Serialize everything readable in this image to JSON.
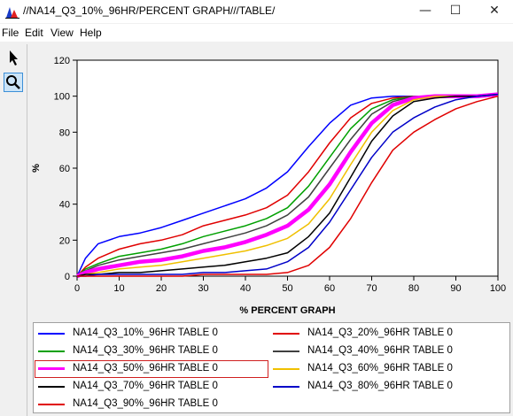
{
  "window": {
    "title": "//NA14_Q3_10%_96HR/PERCENT GRAPH///TABLE/",
    "minimize_glyph": "—",
    "maximize_glyph": "☐",
    "close_glyph": "✕"
  },
  "menu": [
    "File",
    "Edit",
    "View",
    "Help"
  ],
  "toolbar": [
    {
      "name": "pointer-tool",
      "icon": "arrow-pointer-icon",
      "active": false
    },
    {
      "name": "zoom-tool",
      "icon": "magnifier-icon",
      "active": true
    }
  ],
  "chart_data": {
    "type": "line",
    "title": "",
    "xlabel": "% PERCENT GRAPH",
    "ylabel": "%",
    "xlim": [
      0,
      100
    ],
    "ylim": [
      0,
      120
    ],
    "xticks": [
      0,
      10,
      20,
      30,
      40,
      50,
      60,
      70,
      80,
      90,
      100
    ],
    "yticks": [
      0,
      20,
      40,
      60,
      80,
      100,
      120
    ],
    "grid": false,
    "legend": "bottom",
    "x": [
      0,
      2,
      5,
      10,
      15,
      20,
      25,
      30,
      35,
      40,
      45,
      50,
      55,
      60,
      65,
      70,
      75,
      80,
      85,
      90,
      95,
      100
    ],
    "series": [
      {
        "name": "NA14_Q3_10%_96HR TABLE  0",
        "color": "#0000ff",
        "width": 1.5,
        "values": [
          0,
          10,
          18,
          22,
          24,
          27,
          31,
          35,
          39,
          43,
          49,
          58,
          72,
          85,
          95,
          99,
          100,
          100,
          100,
          100,
          100,
          100
        ]
      },
      {
        "name": "NA14_Q3_20%_96HR TABLE  0",
        "color": "#e00000",
        "width": 1.5,
        "values": [
          0,
          5,
          10,
          15,
          18,
          20,
          23,
          28,
          31,
          34,
          38,
          45,
          58,
          74,
          88,
          96,
          99,
          100,
          100,
          100,
          100,
          100
        ]
      },
      {
        "name": "NA14_Q3_30%_96HR TABLE  0",
        "color": "#00a000",
        "width": 1.5,
        "values": [
          0,
          4,
          7,
          11,
          13,
          15,
          18,
          22,
          25,
          28,
          32,
          38,
          50,
          66,
          82,
          93,
          98,
          100,
          100,
          100,
          100,
          100
        ]
      },
      {
        "name": "NA14_Q3_40%_96HR TABLE  0",
        "color": "#404040",
        "width": 1.5,
        "values": [
          0,
          3,
          6,
          9,
          11,
          13,
          15,
          18,
          21,
          24,
          28,
          34,
          44,
          60,
          76,
          90,
          97,
          100,
          100,
          100,
          100,
          100
        ]
      },
      {
        "name": "NA14_Q3_50%_96HR TABLE  0",
        "color": "#ff00ff",
        "width": 4.5,
        "values": [
          0,
          2,
          4,
          6,
          8,
          9,
          11,
          14,
          16,
          19,
          23,
          28,
          37,
          51,
          69,
          85,
          95,
          99,
          100,
          100,
          100,
          101
        ]
      },
      {
        "name": "NA14_Q3_60%_96HR TABLE  0",
        "color": "#f0c000",
        "width": 1.5,
        "values": [
          0,
          1,
          2,
          4,
          5,
          6,
          8,
          10,
          12,
          14,
          17,
          21,
          29,
          43,
          62,
          80,
          92,
          98,
          100,
          100,
          100,
          101
        ]
      },
      {
        "name": "NA14_Q3_70%_96HR TABLE  0",
        "color": "#000000",
        "width": 1.5,
        "values": [
          0,
          1,
          1,
          2,
          2,
          3,
          4,
          5,
          6,
          8,
          10,
          13,
          22,
          35,
          55,
          75,
          89,
          97,
          99,
          100,
          100,
          101
        ]
      },
      {
        "name": "NA14_Q3_80%_96HR TABLE  0",
        "color": "#0000c8",
        "width": 1.5,
        "values": [
          0,
          0,
          1,
          1,
          1,
          1,
          1,
          2,
          2,
          3,
          4,
          8,
          16,
          30,
          48,
          66,
          80,
          88,
          94,
          98,
          100,
          101
        ]
      },
      {
        "name": "NA14_Q3_90%_96HR TABLE  0",
        "color": "#e00000",
        "width": 1.5,
        "values": [
          0,
          0,
          0,
          0,
          0,
          0,
          0,
          1,
          1,
          1,
          1,
          2,
          6,
          16,
          32,
          52,
          70,
          80,
          87,
          93,
          97,
          100
        ]
      }
    ]
  },
  "legend_selected": 4
}
